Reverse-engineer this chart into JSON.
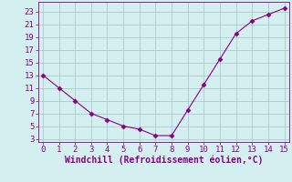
{
  "x": [
    0,
    1,
    2,
    3,
    4,
    5,
    6,
    7,
    8,
    9,
    10,
    11,
    12,
    13,
    14,
    15
  ],
  "y": [
    13,
    11,
    9,
    7,
    6,
    5,
    4.5,
    3.5,
    3.5,
    7.5,
    11.5,
    15.5,
    19.5,
    21.5,
    22.5,
    23.5
  ],
  "xlim": [
    -0.3,
    15.3
  ],
  "ylim": [
    2.5,
    24.5
  ],
  "xticks": [
    0,
    1,
    2,
    3,
    4,
    5,
    6,
    7,
    8,
    9,
    10,
    11,
    12,
    13,
    14,
    15
  ],
  "yticks": [
    3,
    5,
    7,
    9,
    11,
    13,
    15,
    17,
    19,
    21,
    23
  ],
  "xlabel": "Windchill (Refroidissement éolien,°C)",
  "line_color": "#880088",
  "marker": "D",
  "marker_size": 2.5,
  "background_color": "#d4efef",
  "grid_color": "#aacccc",
  "tick_label_fontsize": 6.5,
  "xlabel_fontsize": 7.0
}
